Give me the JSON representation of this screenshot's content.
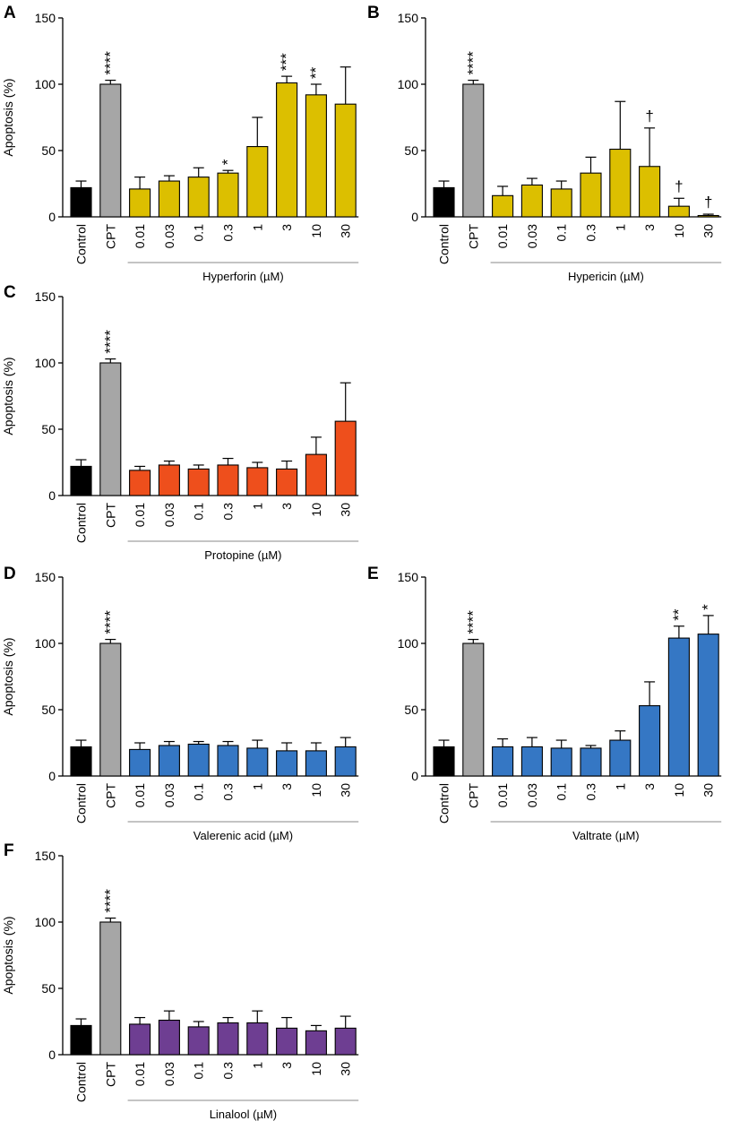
{
  "chart_data": [
    {
      "panel": "A",
      "type": "bar",
      "ylabel": "Apoptosis (%)",
      "yticks": [
        0,
        50,
        100,
        150
      ],
      "ylim": [
        0,
        150
      ],
      "categories": [
        "Control",
        "CPT",
        "0.01",
        "0.03",
        "0.1",
        "0.3",
        "1",
        "3",
        "10",
        "30"
      ],
      "values": [
        22,
        100,
        21,
        27,
        30,
        33,
        53,
        101,
        92,
        85
      ],
      "errors": [
        5,
        3,
        9,
        4,
        7,
        2,
        22,
        5,
        8,
        28
      ],
      "annotations": [
        "",
        "****",
        "",
        "",
        "",
        "*",
        "",
        "***",
        "**",
        ""
      ],
      "group_label": "Hyperforin (µM)",
      "colors": [
        "#000000",
        "#a6a6a6",
        "#dcbf00",
        "#dcbf00",
        "#dcbf00",
        "#dcbf00",
        "#dcbf00",
        "#dcbf00",
        "#dcbf00",
        "#dcbf00"
      ]
    },
    {
      "panel": "B",
      "type": "bar",
      "ylabel": "",
      "yticks": [
        0,
        50,
        100,
        150
      ],
      "ylim": [
        0,
        150
      ],
      "categories": [
        "Control",
        "CPT",
        "0.01",
        "0.03",
        "0.1",
        "0.3",
        "1",
        "3",
        "10",
        "30"
      ],
      "values": [
        22,
        100,
        16,
        24,
        21,
        33,
        51,
        38,
        8,
        1
      ],
      "errors": [
        5,
        3,
        7,
        5,
        6,
        12,
        36,
        29,
        6,
        1
      ],
      "annotations": [
        "",
        "****",
        "",
        "",
        "",
        "",
        "",
        "†",
        "†",
        "†"
      ],
      "group_label": "Hypericin (µM)",
      "colors": [
        "#000000",
        "#a6a6a6",
        "#dcbf00",
        "#dcbf00",
        "#dcbf00",
        "#dcbf00",
        "#dcbf00",
        "#dcbf00",
        "#dcbf00",
        "#dcbf00"
      ]
    },
    {
      "panel": "C",
      "type": "bar",
      "ylabel": "Apoptosis (%)",
      "yticks": [
        0,
        50,
        100,
        150
      ],
      "ylim": [
        0,
        150
      ],
      "categories": [
        "Control",
        "CPT",
        "0.01",
        "0.03",
        "0.1",
        "0.3",
        "1",
        "3",
        "10",
        "30"
      ],
      "values": [
        22,
        100,
        19,
        23,
        20,
        23,
        21,
        20,
        31,
        56
      ],
      "errors": [
        5,
        3,
        3,
        3,
        3,
        5,
        4,
        6,
        13,
        29
      ],
      "annotations": [
        "",
        "****",
        "",
        "",
        "",
        "",
        "",
        "",
        "",
        ""
      ],
      "group_label": "Protopine (µM)",
      "colors": [
        "#000000",
        "#a6a6a6",
        "#ee4f1c",
        "#ee4f1c",
        "#ee4f1c",
        "#ee4f1c",
        "#ee4f1c",
        "#ee4f1c",
        "#ee4f1c",
        "#ee4f1c"
      ]
    },
    {
      "panel": "D",
      "type": "bar",
      "ylabel": "Apoptosis (%)",
      "yticks": [
        0,
        50,
        100,
        150
      ],
      "ylim": [
        0,
        150
      ],
      "categories": [
        "Control",
        "CPT",
        "0.01",
        "0.03",
        "0.1",
        "0.3",
        "1",
        "3",
        "10",
        "30"
      ],
      "values": [
        22,
        100,
        20,
        23,
        24,
        23,
        21,
        19,
        19,
        22
      ],
      "errors": [
        5,
        3,
        5,
        3,
        2,
        3,
        6,
        6,
        6,
        7
      ],
      "annotations": [
        "",
        "****",
        "",
        "",
        "",
        "",
        "",
        "",
        "",
        ""
      ],
      "group_label": "Valerenic acid (µM)",
      "colors": [
        "#000000",
        "#a6a6a6",
        "#3577c4",
        "#3577c4",
        "#3577c4",
        "#3577c4",
        "#3577c4",
        "#3577c4",
        "#3577c4",
        "#3577c4"
      ]
    },
    {
      "panel": "E",
      "type": "bar",
      "ylabel": "",
      "yticks": [
        0,
        50,
        100,
        150
      ],
      "ylim": [
        0,
        150
      ],
      "categories": [
        "Control",
        "CPT",
        "0.01",
        "0.03",
        "0.1",
        "0.3",
        "1",
        "3",
        "10",
        "30"
      ],
      "values": [
        22,
        100,
        22,
        22,
        21,
        21,
        27,
        53,
        104,
        107
      ],
      "errors": [
        5,
        3,
        6,
        7,
        6,
        2,
        7,
        18,
        9,
        14
      ],
      "annotations": [
        "",
        "****",
        "",
        "",
        "",
        "",
        "",
        "",
        "**",
        "*"
      ],
      "group_label": "Valtrate (µM)",
      "colors": [
        "#000000",
        "#a6a6a6",
        "#3577c4",
        "#3577c4",
        "#3577c4",
        "#3577c4",
        "#3577c4",
        "#3577c4",
        "#3577c4",
        "#3577c4"
      ]
    },
    {
      "panel": "F",
      "type": "bar",
      "ylabel": "Apoptosis (%)",
      "yticks": [
        0,
        50,
        100,
        150
      ],
      "ylim": [
        0,
        150
      ],
      "categories": [
        "Control",
        "CPT",
        "0.01",
        "0.03",
        "0.1",
        "0.3",
        "1",
        "3",
        "10",
        "30"
      ],
      "values": [
        22,
        100,
        23,
        26,
        21,
        24,
        24,
        20,
        18,
        20
      ],
      "errors": [
        5,
        3,
        5,
        7,
        4,
        4,
        9,
        8,
        4,
        9
      ],
      "annotations": [
        "",
        "****",
        "",
        "",
        "",
        "",
        "",
        "",
        "",
        ""
      ],
      "group_label": "Linalool (µM)",
      "colors": [
        "#000000",
        "#a6a6a6",
        "#6e3e92",
        "#6e3e92",
        "#6e3e92",
        "#6e3e92",
        "#6e3e92",
        "#6e3e92",
        "#6e3e92",
        "#6e3e92"
      ]
    }
  ]
}
